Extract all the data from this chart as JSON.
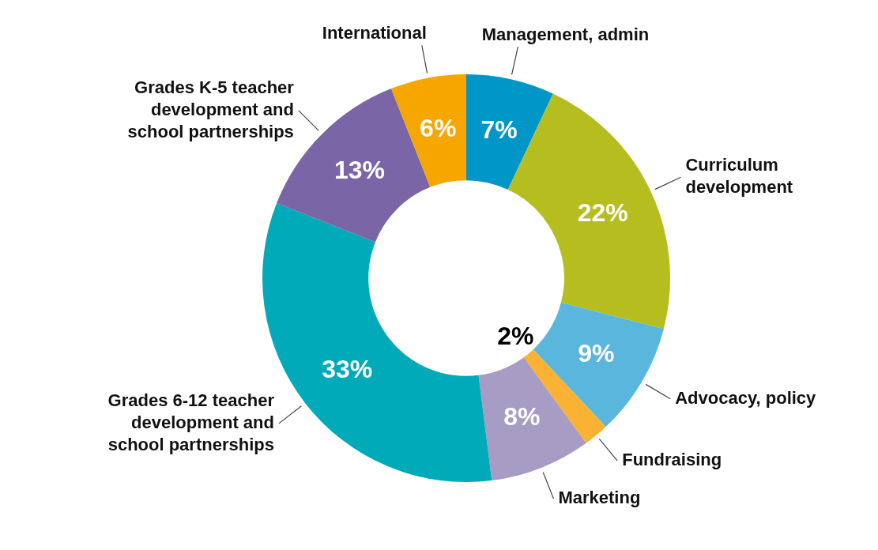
{
  "chart_data": {
    "type": "donut",
    "categories": [
      "Management, admin",
      "Curriculum development",
      "Advocacy, policy",
      "Fundraising",
      "Marketing",
      "Grades 6-12 teacher development and school partnerships",
      "Grades K-5 teacher development and school partnerships",
      "International"
    ],
    "values": [
      7,
      22,
      9,
      2,
      8,
      33,
      13,
      6
    ],
    "value_labels": [
      "7%",
      "22%",
      "9%",
      "2%",
      "8%",
      "33%",
      "13%",
      "6%"
    ],
    "colors": [
      "#0096c8",
      "#b5be1e",
      "#5ab6dc",
      "#f9b233",
      "#a69cc4",
      "#00aab8",
      "#7a66a6",
      "#f7a600"
    ],
    "legend": false
  }
}
